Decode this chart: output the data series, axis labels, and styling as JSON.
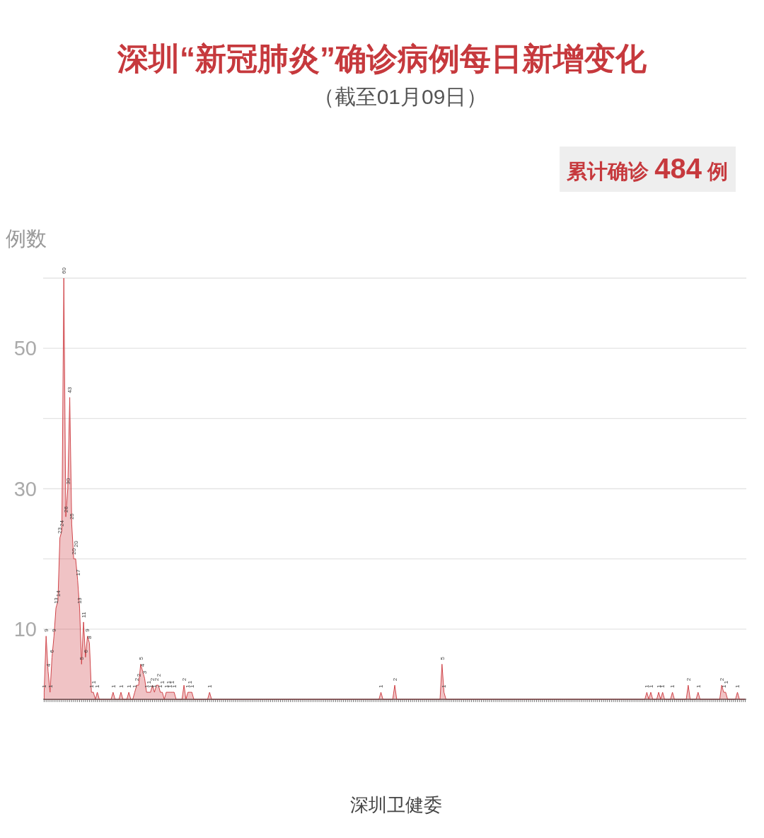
{
  "chart_data": {
    "type": "area",
    "title": "深圳“新冠肺炎”确诊病例每日新增变化",
    "subtitle": "（截至01月09日）",
    "ylabel": "例数",
    "annotations": [
      "累计确诊 484 例",
      "深圳卫健委"
    ],
    "categories": [
      null,
      null,
      null,
      null,
      null,
      null,
      null,
      null,
      null,
      null,
      null,
      null,
      null,
      null,
      null,
      null,
      null,
      null,
      null,
      null,
      null,
      null,
      null,
      null,
      null,
      null,
      null,
      null,
      null,
      null,
      null,
      null,
      null,
      null,
      null,
      null,
      null,
      null,
      null,
      null,
      null,
      null,
      null,
      null,
      null,
      null,
      null,
      null,
      null,
      null,
      null,
      null,
      null,
      null,
      null,
      null,
      null,
      null,
      null,
      null,
      null,
      null,
      null,
      null,
      null,
      null,
      null,
      null,
      null,
      null,
      null,
      null,
      null,
      null,
      null,
      null,
      null,
      null,
      null,
      null,
      null,
      null,
      null,
      null,
      null,
      null,
      null,
      null,
      null,
      null,
      null,
      null,
      null,
      null,
      null,
      null,
      null,
      null,
      null,
      null,
      null,
      null,
      null,
      null,
      null,
      null,
      null,
      null,
      null,
      null,
      null,
      null,
      null,
      null,
      null,
      null,
      null,
      null,
      null,
      null,
      null,
      null,
      null,
      null,
      null,
      null,
      null,
      null,
      null,
      null,
      null,
      null,
      null,
      null,
      null,
      null,
      null,
      null,
      null,
      null,
      null,
      null,
      null,
      null,
      null,
      null,
      null,
      null,
      null,
      null,
      null,
      null,
      null,
      null,
      null,
      null,
      null,
      null,
      null,
      null,
      null,
      null,
      null,
      null,
      null,
      null,
      null,
      null,
      null,
      null,
      null,
      null,
      null,
      null,
      null,
      null,
      null,
      null,
      null,
      null,
      null,
      null,
      null,
      null,
      null,
      null,
      null,
      null,
      null,
      null,
      null,
      null,
      null,
      null,
      null,
      null,
      null,
      null,
      null,
      null,
      null,
      null,
      null,
      null,
      null,
      null,
      null,
      null,
      null,
      null,
      null,
      null,
      null,
      null,
      null,
      null,
      null,
      null,
      null,
      null,
      null,
      null,
      null,
      null,
      null,
      null,
      null,
      null,
      null,
      null,
      null,
      null,
      null,
      null,
      null,
      null,
      null,
      null,
      null,
      null,
      null,
      null,
      null,
      null,
      null,
      null,
      null,
      null,
      null,
      null,
      null,
      null,
      null,
      null,
      null,
      null,
      null,
      null,
      null,
      null,
      null,
      null,
      null,
      null,
      null,
      null,
      null,
      null,
      null,
      null,
      null,
      null,
      null,
      null,
      null,
      null,
      null,
      null,
      null,
      null,
      null,
      null,
      null,
      null,
      null,
      null,
      null,
      null,
      null,
      null,
      null,
      null,
      null,
      null,
      null,
      null,
      null,
      null,
      null,
      null,
      null,
      null,
      null,
      null,
      null,
      null,
      null,
      null,
      null,
      null,
      null,
      null,
      null,
      null,
      null,
      null,
      null,
      null,
      null,
      null,
      null,
      null,
      null,
      null,
      null,
      null,
      null,
      null,
      null,
      null,
      null,
      null,
      null,
      null,
      null,
      null,
      null,
      null,
      null,
      null,
      null,
      null,
      null,
      null,
      null,
      null,
      null,
      null,
      null,
      null,
      null,
      null,
      null,
      null,
      null,
      null,
      null
    ],
    "values": [
      1,
      9,
      4,
      1,
      6,
      9,
      13,
      14,
      23,
      24,
      60,
      26,
      30,
      43,
      25,
      20,
      20,
      17,
      13,
      5,
      11,
      6,
      9,
      8,
      1,
      1,
      0,
      1,
      0,
      0,
      0,
      0,
      0,
      0,
      0,
      1,
      0,
      0,
      0,
      1,
      0,
      0,
      0,
      1,
      0,
      0,
      1,
      2,
      2,
      5,
      4,
      3,
      1,
      1,
      1,
      2,
      1,
      2,
      2,
      1,
      1,
      0,
      1,
      1,
      1,
      1,
      1,
      0,
      0,
      0,
      0,
      2,
      0,
      1,
      1,
      1,
      0,
      0,
      0,
      0,
      0,
      0,
      0,
      0,
      1,
      0,
      0,
      0,
      0,
      0,
      0,
      0,
      0,
      0,
      0,
      0,
      0,
      0,
      0,
      0,
      0,
      0,
      0,
      0,
      0,
      0,
      0,
      0,
      0,
      0,
      0,
      0,
      0,
      0,
      0,
      0,
      0,
      0,
      0,
      0,
      0,
      0,
      0,
      0,
      0,
      0,
      0,
      0,
      0,
      0,
      0,
      0,
      0,
      0,
      0,
      0,
      0,
      0,
      0,
      0,
      0,
      0,
      0,
      0,
      0,
      0,
      0,
      0,
      0,
      0,
      0,
      0,
      0,
      0,
      0,
      0,
      0,
      0,
      0,
      0,
      0,
      0,
      0,
      0,
      0,
      0,
      0,
      0,
      0,
      0,
      0,
      1,
      0,
      0,
      0,
      0,
      0,
      0,
      2,
      0,
      0,
      0,
      0,
      0,
      0,
      0,
      0,
      0,
      0,
      0,
      0,
      0,
      0,
      0,
      0,
      0,
      0,
      0,
      0,
      0,
      0,
      0,
      5,
      1,
      0,
      0,
      0,
      0,
      0,
      0,
      0,
      0,
      0,
      0,
      0,
      0,
      0,
      0,
      0,
      0,
      0,
      0,
      0,
      0,
      0,
      0,
      0,
      0,
      0,
      0,
      0,
      0,
      0,
      0,
      0,
      0,
      0,
      0,
      0,
      0,
      0,
      0,
      0,
      0,
      0,
      0,
      0,
      0,
      0,
      0,
      0,
      0,
      0,
      0,
      0,
      0,
      0,
      0,
      0,
      0,
      0,
      0,
      0,
      0,
      0,
      0,
      0,
      0,
      0,
      0,
      0,
      0,
      0,
      0,
      0,
      0,
      0,
      0,
      0,
      0,
      0,
      0,
      0,
      0,
      0,
      0,
      0,
      0,
      0,
      0,
      0,
      0,
      0,
      0,
      0,
      0,
      0,
      0,
      0,
      0,
      0,
      0,
      0,
      0,
      0,
      0,
      1,
      0,
      1,
      0,
      0,
      0,
      1,
      0,
      1,
      0,
      0,
      0,
      0,
      1,
      0,
      0,
      0,
      0,
      0,
      0,
      0,
      2,
      0,
      0,
      0,
      0,
      1,
      0,
      0,
      0,
      0,
      0,
      0,
      0,
      0,
      0,
      0,
      0,
      2,
      1,
      1,
      0,
      0,
      0,
      0,
      0,
      1,
      0,
      0,
      0,
      0
    ],
    "value_labels": [
      "1",
      "9",
      "4",
      "1",
      "6",
      "9",
      "13",
      "14",
      "23",
      "24",
      "60",
      "26",
      "30",
      "43",
      "25",
      "20",
      "20",
      "17",
      "13",
      "5",
      "11",
      "6",
      "9",
      "8",
      "1",
      "1",
      null,
      "1",
      null,
      null,
      null,
      null,
      null,
      null,
      null,
      "1",
      null,
      null,
      null,
      "1",
      null,
      null,
      null,
      "1",
      null,
      null,
      "1",
      "2",
      "2",
      "5",
      "4",
      "3",
      "1",
      "1",
      "1",
      "2",
      "1",
      "2",
      "2",
      "1",
      "1",
      null,
      "1",
      "1",
      "1",
      "1",
      "1",
      null,
      null,
      null,
      null,
      "2",
      null,
      "1",
      "1",
      "1",
      null,
      null,
      null,
      null,
      null,
      null,
      null,
      null,
      "1",
      null,
      null,
      null,
      null,
      null,
      null,
      null,
      null,
      null,
      null,
      null,
      null,
      null,
      null,
      null,
      null,
      null,
      null,
      null,
      null,
      null,
      null,
      null,
      null,
      null,
      null,
      null,
      null,
      null,
      null,
      null,
      null,
      null,
      null,
      null,
      null,
      null,
      null,
      null,
      null,
      null,
      null,
      null,
      null,
      null,
      null,
      null,
      null,
      null,
      null,
      null,
      null,
      null,
      null,
      null,
      null,
      null,
      null,
      null,
      null,
      null,
      null,
      null,
      null,
      null,
      null,
      null,
      null,
      null,
      null,
      null,
      null,
      null,
      null,
      null,
      null,
      null,
      null,
      null,
      null,
      null,
      null,
      null,
      null,
      null,
      null,
      "1",
      null,
      null,
      null,
      null,
      null,
      null,
      "2",
      null,
      null,
      null,
      null,
      null,
      null,
      null,
      null,
      null,
      null,
      null,
      null,
      null,
      null,
      null,
      null,
      null,
      null,
      null,
      null,
      null,
      null,
      null,
      "5",
      "1",
      null,
      null,
      null,
      null,
      null,
      null,
      null,
      null,
      null,
      null,
      null,
      null,
      null,
      null,
      null,
      null,
      null,
      null,
      null,
      null,
      null,
      null,
      null,
      null,
      null,
      null,
      null,
      null,
      null,
      null,
      null,
      null,
      null,
      null,
      null,
      null,
      null,
      null,
      null,
      null,
      null,
      null,
      null,
      null,
      null,
      null,
      null,
      null,
      null,
      null,
      null,
      null,
      null,
      null,
      null,
      null,
      null,
      null,
      null,
      null,
      null,
      null,
      null,
      null,
      null,
      null,
      null,
      null,
      null,
      null,
      null,
      null,
      null,
      null,
      null,
      null,
      null,
      null,
      null,
      null,
      null,
      null,
      null,
      null,
      null,
      null,
      null,
      null,
      null,
      null,
      null,
      null,
      null,
      null,
      null,
      null,
      null,
      null,
      null,
      null,
      null,
      null,
      "1",
      null,
      "1",
      null,
      null,
      null,
      "1",
      null,
      "1",
      null,
      null,
      null,
      null,
      "1",
      null,
      null,
      null,
      null,
      null,
      null,
      null,
      "2",
      null,
      null,
      null,
      null,
      "1",
      null,
      null,
      null,
      null,
      null,
      null,
      null,
      null,
      null,
      null,
      null,
      "2",
      "1",
      "1",
      null,
      null,
      null,
      null,
      null,
      "1",
      null,
      null,
      null,
      null
    ],
    "color": "#d0454a",
    "ylim": [
      0,
      60
    ],
    "yticks": [
      10,
      {
        "value": 20,
        "label": null
      },
      30,
      {
        "value": 40,
        "label": null
      },
      50,
      {
        "value": 60,
        "label": null
      }
    ],
    "grid": "y",
    "tick_labels": "y"
  }
}
